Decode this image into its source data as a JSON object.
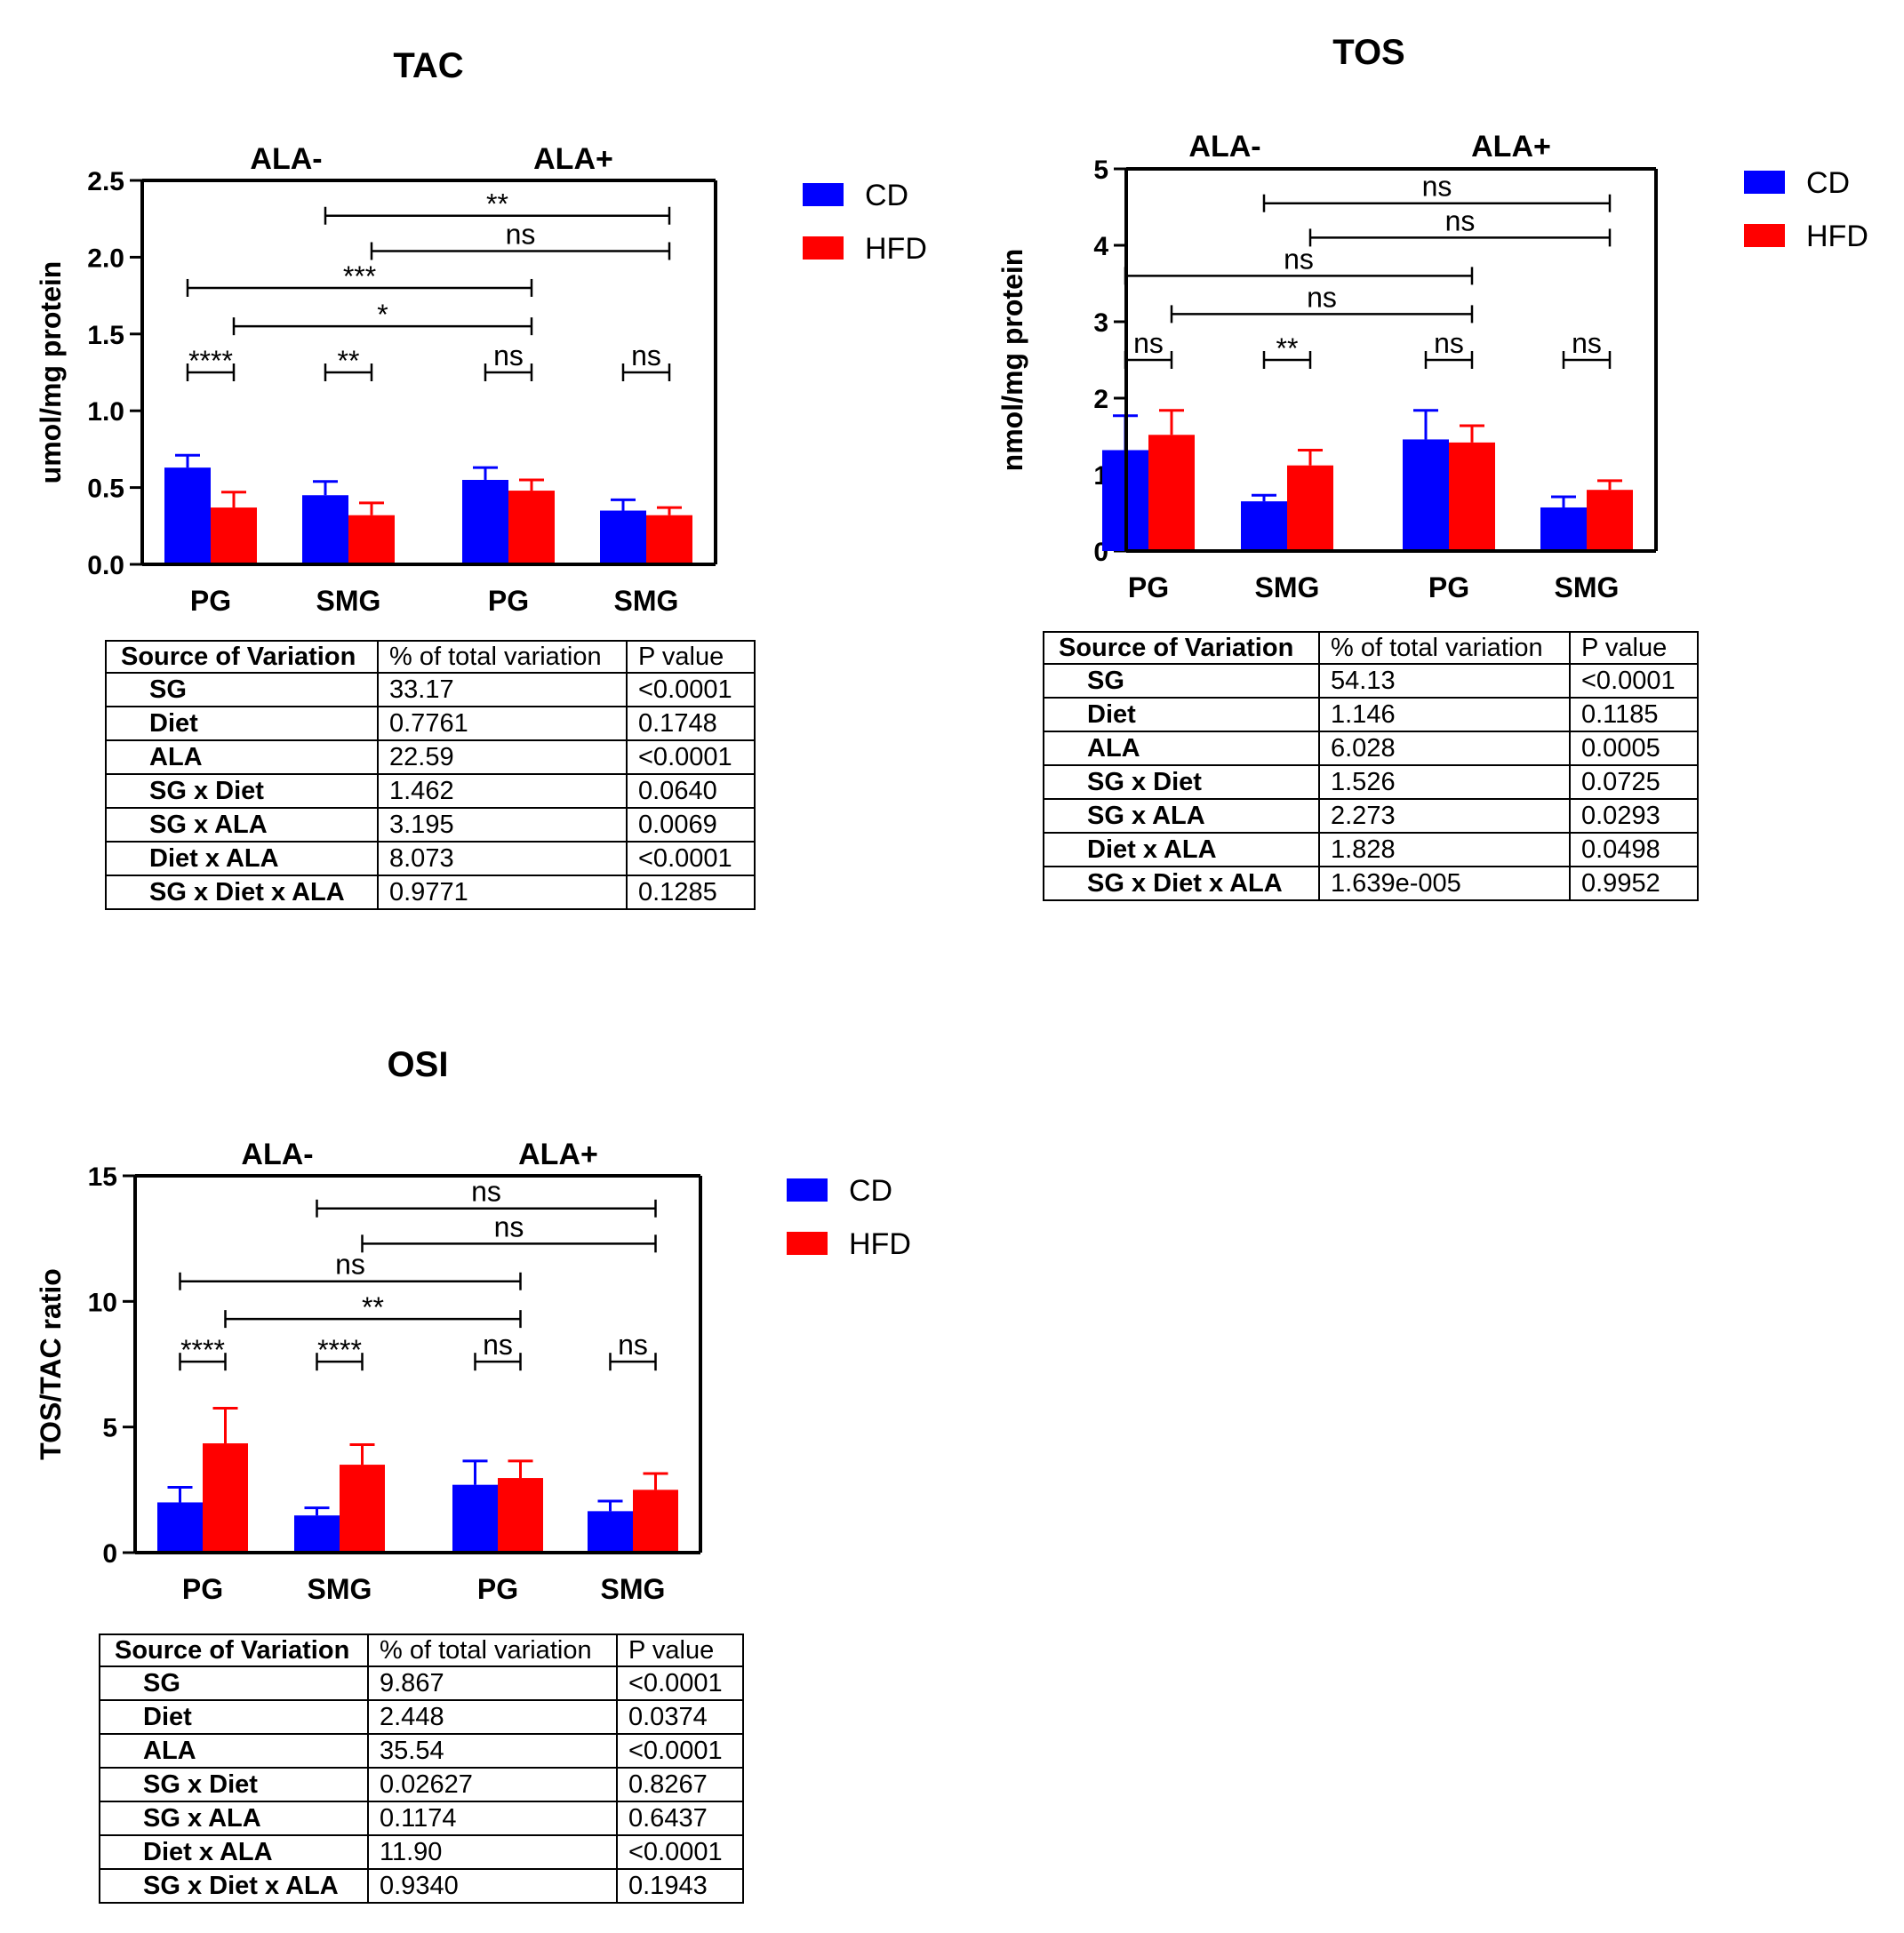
{
  "chart_data": [
    {
      "type": "bar",
      "title": "TAC",
      "ylabel": "umol/mg protein",
      "ylim": [
        0,
        2.5
      ],
      "yticks": [
        "0.0",
        "0.5",
        "1.0",
        "1.5",
        "2.0",
        "2.5"
      ],
      "groups": [
        "ALA-",
        "ALA+"
      ],
      "categories": [
        "PG",
        "SMG",
        "PG",
        "SMG"
      ],
      "series": [
        {
          "name": "CD",
          "color": "#0000ff",
          "values": [
            0.63,
            0.45,
            0.55,
            0.35
          ],
          "errors": [
            0.08,
            0.09,
            0.08,
            0.07
          ]
        },
        {
          "name": "HFD",
          "color": "#ff0000",
          "values": [
            0.37,
            0.32,
            0.48,
            0.32
          ],
          "errors": [
            0.1,
            0.08,
            0.07,
            0.05
          ]
        }
      ],
      "significance": [
        {
          "label": "****",
          "from": 0,
          "to": 1,
          "y": 1.25
        },
        {
          "label": "**",
          "from": 2,
          "to": 3,
          "y": 1.25
        },
        {
          "label": "ns",
          "from": 4,
          "to": 5,
          "y": 1.25
        },
        {
          "label": "ns",
          "from": 6,
          "to": 7,
          "y": 1.25
        },
        {
          "label": "*",
          "from": 1,
          "to": 5,
          "y": 1.55
        },
        {
          "label": "***",
          "from": 0,
          "to": 5,
          "y": 1.8
        },
        {
          "label": "ns",
          "from": 3,
          "to": 7,
          "y": 2.04
        },
        {
          "label": "**",
          "from": 2,
          "to": 7,
          "y": 2.27
        }
      ],
      "table": {
        "headers": [
          "Source of Variation",
          "% of total variation",
          "P value"
        ],
        "rows": [
          [
            "SG",
            "33.17",
            "<0.0001"
          ],
          [
            "Diet",
            "0.7761",
            "0.1748"
          ],
          [
            "ALA",
            "22.59",
            "<0.0001"
          ],
          [
            "SG x Diet",
            "1.462",
            "0.0640"
          ],
          [
            "SG x ALA",
            "3.195",
            "0.0069"
          ],
          [
            "Diet x ALA",
            "8.073",
            "<0.0001"
          ],
          [
            "SG x Diet x ALA",
            "0.9771",
            "0.1285"
          ]
        ]
      }
    },
    {
      "type": "bar",
      "title": "TOS",
      "ylabel": "nmol/mg protein",
      "ylim": [
        0,
        5
      ],
      "yticks": [
        "0",
        "1",
        "2",
        "3",
        "4",
        "5"
      ],
      "groups": [
        "ALA-",
        "ALA+"
      ],
      "categories": [
        "PG",
        "SMG",
        "PG",
        "SMG"
      ],
      "series": [
        {
          "name": "CD",
          "color": "#0000ff",
          "values": [
            1.32,
            0.65,
            1.46,
            0.57
          ],
          "errors": [
            0.45,
            0.08,
            0.38,
            0.14
          ]
        },
        {
          "name": "HFD",
          "color": "#ff0000",
          "values": [
            1.52,
            1.12,
            1.42,
            0.8
          ],
          "errors": [
            0.32,
            0.2,
            0.22,
            0.12
          ]
        }
      ],
      "significance": [
        {
          "label": "ns",
          "from": 0,
          "to": 1,
          "y": 2.5
        },
        {
          "label": "**",
          "from": 2,
          "to": 3,
          "y": 2.5
        },
        {
          "label": "ns",
          "from": 4,
          "to": 5,
          "y": 2.5
        },
        {
          "label": "ns",
          "from": 6,
          "to": 7,
          "y": 2.5
        },
        {
          "label": "ns",
          "from": 1,
          "to": 5,
          "y": 3.1
        },
        {
          "label": "ns",
          "from": 0,
          "to": 5,
          "y": 3.6
        },
        {
          "label": "ns",
          "from": 3,
          "to": 7,
          "y": 4.1
        },
        {
          "label": "ns",
          "from": 2,
          "to": 7,
          "y": 4.55
        }
      ],
      "table": {
        "headers": [
          "Source of Variation",
          "% of total variation",
          "P value"
        ],
        "rows": [
          [
            "SG",
            "54.13",
            "<0.0001"
          ],
          [
            "Diet",
            "1.146",
            "0.1185"
          ],
          [
            "ALA",
            "6.028",
            "0.0005"
          ],
          [
            "SG x Diet",
            "1.526",
            "0.0725"
          ],
          [
            "SG x ALA",
            "2.273",
            "0.0293"
          ],
          [
            "Diet x ALA",
            "1.828",
            "0.0498"
          ],
          [
            "SG x Diet x ALA",
            "1.639e-005",
            "0.9952"
          ]
        ]
      }
    },
    {
      "type": "bar",
      "title": "OSI",
      "ylabel": "TOS/TAC ratio",
      "ylim": [
        0,
        15
      ],
      "yticks": [
        "0",
        "5",
        "10",
        "15"
      ],
      "groups": [
        "ALA-",
        "ALA+"
      ],
      "categories": [
        "PG",
        "SMG",
        "PG",
        "SMG"
      ],
      "series": [
        {
          "name": "CD",
          "color": "#0000ff",
          "values": [
            2.0,
            1.48,
            2.7,
            1.65
          ],
          "errors": [
            0.6,
            0.3,
            0.95,
            0.4
          ]
        },
        {
          "name": "HFD",
          "color": "#ff0000",
          "values": [
            4.35,
            3.5,
            2.97,
            2.5
          ],
          "errors": [
            1.4,
            0.8,
            0.68,
            0.65
          ]
        }
      ],
      "significance": [
        {
          "label": "****",
          "from": 0,
          "to": 1,
          "y": 7.6
        },
        {
          "label": "****",
          "from": 2,
          "to": 3,
          "y": 7.6
        },
        {
          "label": "ns",
          "from": 4,
          "to": 5,
          "y": 7.6
        },
        {
          "label": "ns",
          "from": 6,
          "to": 7,
          "y": 7.6
        },
        {
          "label": "**",
          "from": 1,
          "to": 5,
          "y": 9.3
        },
        {
          "label": "ns",
          "from": 0,
          "to": 5,
          "y": 10.8
        },
        {
          "label": "ns",
          "from": 3,
          "to": 7,
          "y": 12.3
        },
        {
          "label": "ns",
          "from": 2,
          "to": 7,
          "y": 13.7
        }
      ],
      "table": {
        "headers": [
          "Source of Variation",
          "% of total variation",
          "P value"
        ],
        "rows": [
          [
            "SG",
            "9.867",
            "<0.0001"
          ],
          [
            "Diet",
            "2.448",
            "0.0374"
          ],
          [
            "ALA",
            "35.54",
            "<0.0001"
          ],
          [
            "SG x Diet",
            "0.02627",
            "0.8267"
          ],
          [
            "SG x ALA",
            "0.1174",
            "0.6437"
          ],
          [
            "Diet x ALA",
            "11.90",
            "<0.0001"
          ],
          [
            "SG x Diet x ALA",
            "0.9340",
            "0.1943"
          ]
        ]
      }
    }
  ]
}
